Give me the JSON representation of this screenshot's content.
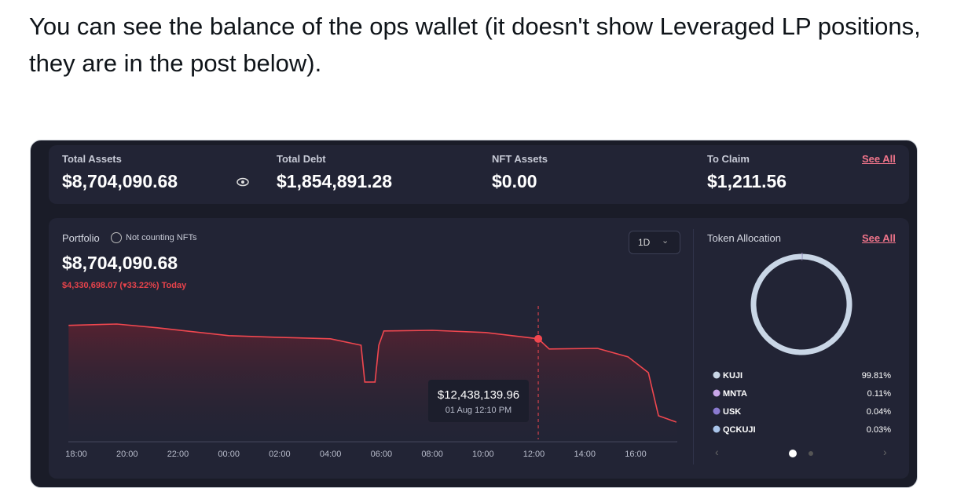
{
  "tweet_text": "You can see the balance of the ops wallet (it doesn't show Leveraged LP positions, they are in the post below).",
  "stats": [
    {
      "label": "Total Assets",
      "value": "$8,704,090.68"
    },
    {
      "label": "Total Debt",
      "value": "$1,854,891.28"
    },
    {
      "label": "NFT Assets",
      "value": "$0.00"
    },
    {
      "label": "To Claim",
      "value": "$1,211.56"
    }
  ],
  "see_all_top": "See All",
  "portfolio": {
    "title": "Portfolio",
    "note": "Not counting NFTs",
    "value": "$8,704,090.68",
    "change": "$4,330,698.07 (▾33.22%) Today",
    "range_button": "1D"
  },
  "chart_data": {
    "type": "line",
    "x": [
      17.7,
      19.6,
      21.2,
      24.0,
      25.8,
      28.0,
      29.2,
      29.35,
      29.75,
      29.9,
      30.1,
      32.0,
      34.1,
      36.17,
      36.6,
      38.5,
      39.7,
      40.5,
      40.9,
      41.6
    ],
    "series": [
      {
        "name": "Portfolio",
        "color": "#f0474f",
        "values": [
          13040000,
          13100000,
          12930000,
          12580000,
          12510000,
          12440000,
          12150000,
          10500000,
          10500000,
          12150000,
          12790000,
          12820000,
          12720000,
          12438139.96,
          11980000,
          12010000,
          11630000,
          10920000,
          8990000,
          8704090.68
        ]
      }
    ],
    "xlim": [
      17.7,
      41.6
    ],
    "xticks": [
      {
        "value": 18,
        "label": "18:00"
      },
      {
        "value": 20,
        "label": "20:00"
      },
      {
        "value": 22,
        "label": "22:00"
      },
      {
        "value": 24,
        "label": "00:00"
      },
      {
        "value": 26,
        "label": "02:00"
      },
      {
        "value": 28,
        "label": "04:00"
      },
      {
        "value": 30,
        "label": "06:00"
      },
      {
        "value": 32,
        "label": "08:00"
      },
      {
        "value": 34,
        "label": "10:00"
      },
      {
        "value": 36,
        "label": "12:00"
      },
      {
        "value": 38,
        "label": "14:00"
      },
      {
        "value": 40,
        "label": "16:00"
      }
    ],
    "tooltip": {
      "label": "$12,438,139.96",
      "time": "01 Aug 12:10 PM"
    }
  },
  "allocation": {
    "title": "Token Allocation",
    "see_all": "See All",
    "type": "donut",
    "categories": [
      "KUJI",
      "MNTA",
      "USK",
      "QCKUJI"
    ],
    "values": [
      99.81,
      0.11,
      0.04,
      0.03
    ],
    "value_labels": [
      "99.81%",
      "0.11%",
      "0.04%",
      "0.03%"
    ],
    "colors": [
      "#c9d6e6",
      "#c8a6e8",
      "#8a7ad0",
      "#a9c4ea"
    ]
  }
}
